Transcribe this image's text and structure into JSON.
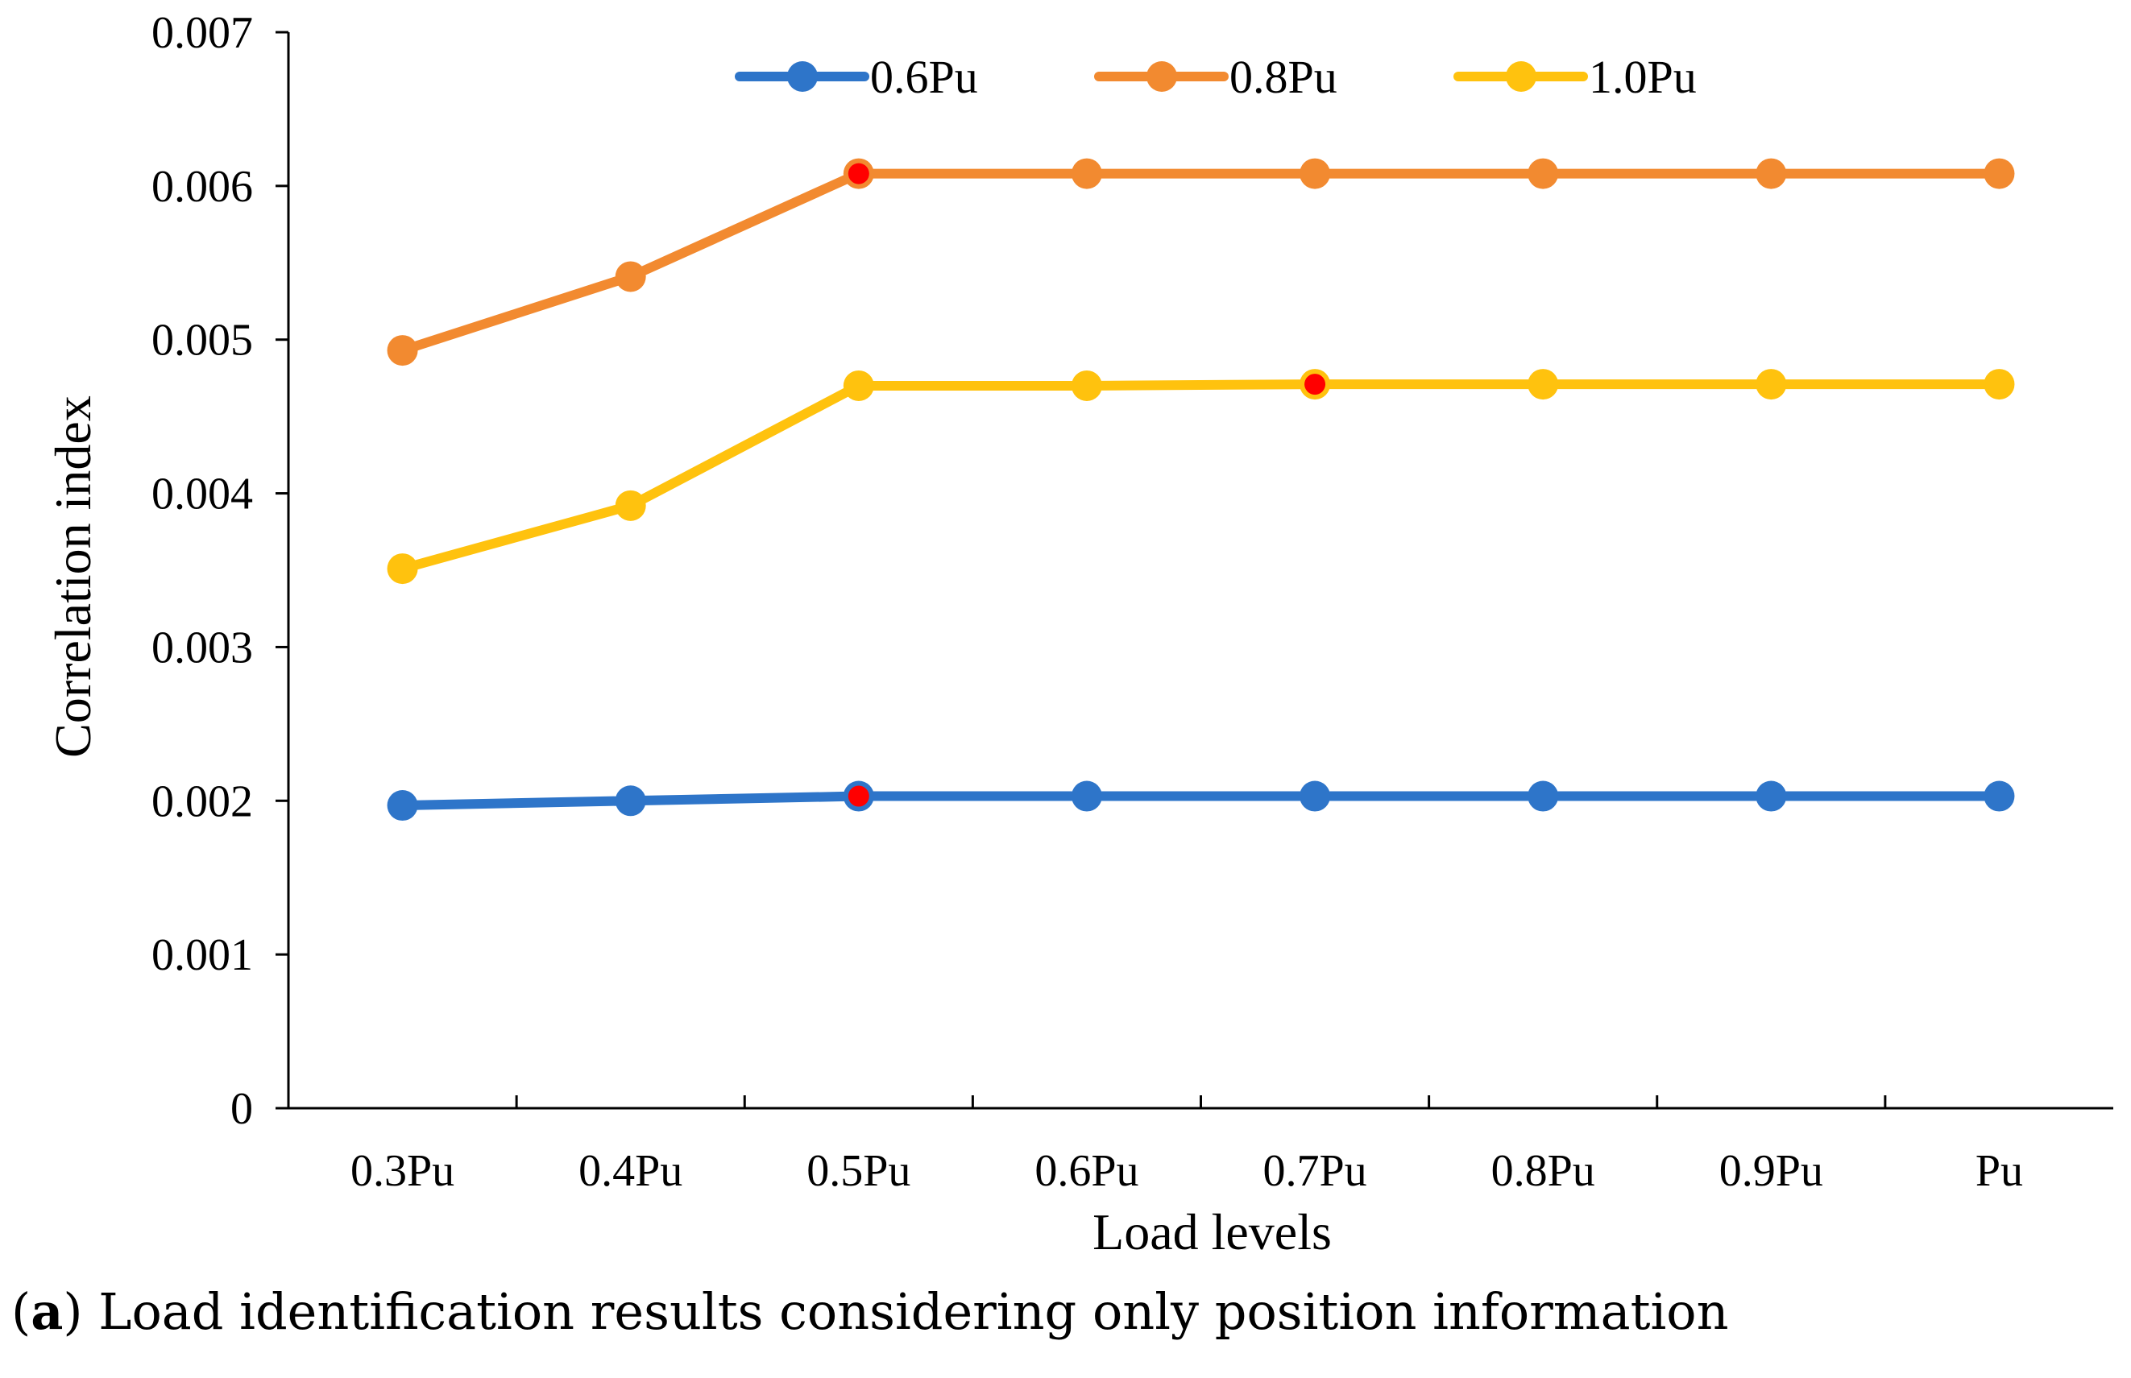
{
  "chart_data": {
    "type": "line",
    "title": "",
    "xlabel": "Load levels",
    "ylabel": "Correlation index",
    "categories": [
      "0.3Pu",
      "0.4Pu",
      "0.5Pu",
      "0.6Pu",
      "0.7Pu",
      "0.8Pu",
      "0.9Pu",
      "Pu"
    ],
    "ylim": [
      0,
      0.007
    ],
    "yticks": [
      "0",
      "0.001",
      "0.002",
      "0.003",
      "0.004",
      "0.005",
      "0.006",
      "0.007"
    ],
    "grid": false,
    "legend_position": "top",
    "series": [
      {
        "name": "0.6Pu",
        "color": "#2E75C9",
        "values": [
          0.00197,
          0.002,
          0.00203,
          0.00203,
          0.00203,
          0.00203,
          0.00203,
          0.00203
        ],
        "highlight_index": 2
      },
      {
        "name": "0.8Pu",
        "color": "#F28A30",
        "values": [
          0.00493,
          0.00541,
          0.00608,
          0.00608,
          0.00608,
          0.00608,
          0.00608,
          0.00608
        ],
        "highlight_index": 2
      },
      {
        "name": "1.0Pu",
        "color": "#FFC20E",
        "values": [
          0.00351,
          0.00392,
          0.0047,
          0.0047,
          0.00471,
          0.00471,
          0.00471,
          0.00471
        ],
        "highlight_index": 4
      }
    ],
    "highlight_color": "#FF0000"
  },
  "caption": {
    "tag": "a",
    "text": " Load identification results considering only position information"
  }
}
